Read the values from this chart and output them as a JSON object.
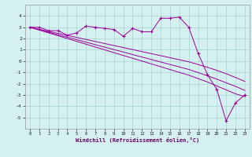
{
  "xlabel": "Windchill (Refroidissement éolien,°C)",
  "background_color": "#d5f0f0",
  "grid_color": "#b0d8d8",
  "line_color": "#990099",
  "x_values": [
    0,
    1,
    2,
    3,
    4,
    5,
    6,
    7,
    8,
    9,
    10,
    11,
    12,
    13,
    14,
    15,
    16,
    17,
    18,
    19,
    20,
    21,
    22,
    23
  ],
  "y_zigzag": [
    3.0,
    3.0,
    2.7,
    2.7,
    2.3,
    2.5,
    3.1,
    3.0,
    2.9,
    2.8,
    2.2,
    2.9,
    2.6,
    2.6,
    3.8,
    3.8,
    3.9,
    3.0,
    0.7,
    -1.2,
    -2.5,
    -5.3,
    -3.7,
    -3.0
  ],
  "y_line1": [
    3.0,
    2.75,
    2.5,
    2.25,
    2.0,
    1.75,
    1.5,
    1.25,
    1.0,
    0.75,
    0.5,
    0.25,
    0.0,
    -0.25,
    -0.5,
    -0.75,
    -1.0,
    -1.25,
    -1.55,
    -1.85,
    -2.2,
    -2.55,
    -2.9,
    -3.15
  ],
  "y_line2": [
    3.0,
    2.78,
    2.56,
    2.34,
    2.12,
    1.9,
    1.68,
    1.46,
    1.24,
    1.02,
    0.8,
    0.58,
    0.36,
    0.14,
    -0.08,
    -0.3,
    -0.52,
    -0.74,
    -1.02,
    -1.3,
    -1.6,
    -1.92,
    -2.24,
    -2.6
  ],
  "y_line3": [
    3.0,
    2.82,
    2.64,
    2.46,
    2.28,
    2.1,
    1.92,
    1.74,
    1.56,
    1.38,
    1.2,
    1.02,
    0.84,
    0.66,
    0.48,
    0.3,
    0.12,
    -0.06,
    -0.3,
    -0.55,
    -0.82,
    -1.12,
    -1.45,
    -1.8
  ],
  "ylim": [
    -6,
    5
  ],
  "xlim": [
    -0.5,
    23.5
  ],
  "yticks": [
    -5,
    -4,
    -3,
    -2,
    -1,
    0,
    1,
    2,
    3,
    4
  ],
  "xticks": [
    0,
    1,
    2,
    3,
    4,
    5,
    6,
    7,
    8,
    9,
    10,
    11,
    12,
    13,
    14,
    15,
    16,
    17,
    18,
    19,
    20,
    21,
    22,
    23
  ]
}
